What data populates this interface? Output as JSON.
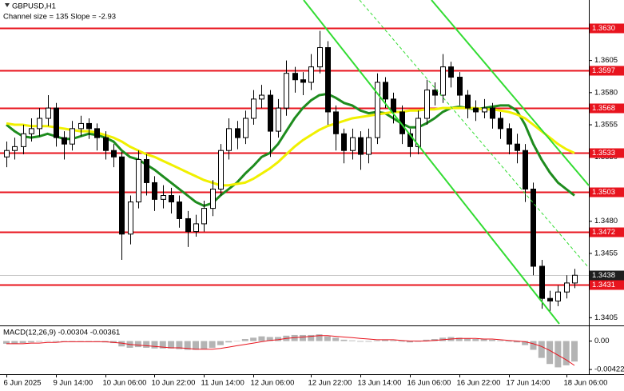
{
  "chart_data": {
    "type": "candlestick",
    "title": "GBPUSD,H1",
    "subtitle": "Channel size = 135 Slope = -2.93",
    "categories": [
      "6 Jun 2025",
      null,
      null,
      null,
      null,
      null,
      "9 Jun 14:00",
      null,
      null,
      null,
      null,
      null,
      "10 Jun 06:00",
      null,
      null,
      null,
      null,
      null,
      "10 Jun 22:00",
      null,
      null,
      null,
      null,
      null,
      "11 Jun 14:00",
      null,
      null,
      null,
      null,
      null,
      "12 Jun 06:00",
      null,
      null,
      null,
      null,
      null,
      null,
      "12 Jun 22:00",
      null,
      null,
      null,
      null,
      null,
      "13 Jun 14:00",
      null,
      null,
      null,
      null,
      null,
      "16 Jun 06:00",
      null,
      null,
      null,
      null,
      null,
      "16 Jun 22:00",
      null,
      null,
      null,
      null,
      null,
      "17 Jun 14:00",
      null,
      null,
      null,
      null,
      null,
      null,
      "18 Jun 06:00",
      null
    ],
    "open": [
      1.353,
      1.3535,
      1.3538,
      1.3548,
      1.3552,
      1.356,
      1.3568,
      1.3545,
      1.354,
      1.3552,
      1.3556,
      1.3552,
      1.3545,
      1.3535,
      1.353,
      1.347,
      1.3495,
      1.3528,
      1.351,
      1.3497,
      1.35,
      1.3495,
      1.3482,
      1.3472,
      1.3478,
      1.349,
      1.3505,
      1.3535,
      1.3552,
      1.3545,
      1.356,
      1.3575,
      1.3578,
      1.355,
      1.3568,
      1.3595,
      1.359,
      1.3588,
      1.36,
      1.3615,
      1.3565,
      1.3548,
      1.3535,
      1.3545,
      1.3532,
      1.3545,
      1.3588,
      1.3575,
      1.3565,
      1.3548,
      1.3538,
      1.356,
      1.3582,
      1.3578,
      1.36,
      1.3592,
      1.3578,
      1.3568,
      1.3565,
      1.3568,
      1.356,
      1.3552,
      1.354,
      1.3535,
      1.3505,
      1.3445,
      1.342,
      1.3418,
      1.3425,
      1.3432
    ],
    "high": [
      1.3542,
      1.3545,
      1.3555,
      1.356,
      1.3568,
      1.3578,
      1.3572,
      1.355,
      1.3558,
      1.3562,
      1.356,
      1.3556,
      1.355,
      1.354,
      1.3534,
      1.35,
      1.3535,
      1.3532,
      1.3515,
      1.3508,
      1.3506,
      1.35,
      1.3488,
      1.3485,
      1.3496,
      1.3512,
      1.354,
      1.356,
      1.3558,
      1.3566,
      1.3582,
      1.3586,
      1.3582,
      1.3575,
      1.3605,
      1.36,
      1.3596,
      1.361,
      1.3628,
      1.362,
      1.357,
      1.3552,
      1.3552,
      1.355,
      1.3552,
      1.3595,
      1.3592,
      1.358,
      1.357,
      1.3552,
      1.3566,
      1.359,
      1.3588,
      1.361,
      1.3604,
      1.3596,
      1.3582,
      1.3574,
      1.3575,
      1.3572,
      1.3565,
      1.3556,
      1.3548,
      1.354,
      1.351,
      1.345,
      1.3426,
      1.343,
      1.3438,
      1.3443
    ],
    "low": [
      1.3522,
      1.3528,
      1.3532,
      1.3542,
      1.3546,
      1.3554,
      1.3538,
      1.3528,
      1.3535,
      1.3546,
      1.3544,
      1.3535,
      1.3528,
      1.3522,
      1.345,
      1.3462,
      1.349,
      1.35,
      1.3488,
      1.349,
      1.3486,
      1.3475,
      1.346,
      1.3468,
      1.3472,
      1.3484,
      1.35,
      1.3528,
      1.3536,
      1.354,
      1.3555,
      1.3568,
      1.353,
      1.3545,
      1.3562,
      1.358,
      1.3578,
      1.3582,
      1.3595,
      1.3555,
      1.3535,
      1.3525,
      1.3528,
      1.352,
      1.3525,
      1.354,
      1.3568,
      1.3556,
      1.354,
      1.353,
      1.3532,
      1.3555,
      1.357,
      1.3572,
      1.3584,
      1.357,
      1.356,
      1.3558,
      1.356,
      1.3552,
      1.3544,
      1.3532,
      1.3525,
      1.3495,
      1.3438,
      1.3412,
      1.341,
      1.3414,
      1.342,
      1.3428
    ],
    "close": [
      1.3535,
      1.3538,
      1.3548,
      1.3552,
      1.356,
      1.3568,
      1.3545,
      1.354,
      1.3552,
      1.3556,
      1.3552,
      1.3545,
      1.3535,
      1.353,
      1.347,
      1.3495,
      1.3528,
      1.351,
      1.3497,
      1.35,
      1.3495,
      1.3482,
      1.3472,
      1.3478,
      1.349,
      1.3505,
      1.3535,
      1.3552,
      1.3545,
      1.356,
      1.3575,
      1.3578,
      1.355,
      1.3568,
      1.3595,
      1.359,
      1.3588,
      1.36,
      1.3615,
      1.3565,
      1.3548,
      1.3535,
      1.3545,
      1.3532,
      1.3545,
      1.3588,
      1.3575,
      1.3565,
      1.3548,
      1.3538,
      1.356,
      1.3582,
      1.3578,
      1.36,
      1.3592,
      1.3578,
      1.3568,
      1.3565,
      1.3568,
      1.356,
      1.3552,
      1.354,
      1.3535,
      1.3505,
      1.3445,
      1.342,
      1.3418,
      1.3425,
      1.3432,
      1.3438
    ],
    "ma_lines": [
      {
        "color": "#1e8c1e",
        "values": [
          1.3555,
          1.355,
          1.3546,
          1.3545,
          1.3546,
          1.3548,
          1.3546,
          1.3544,
          1.3544,
          1.3546,
          1.3548,
          1.3547,
          1.3545,
          1.3542,
          1.3535,
          1.353,
          1.3528,
          1.3524,
          1.352,
          1.3515,
          1.351,
          1.3505,
          1.35,
          1.3495,
          1.3492,
          1.3494,
          1.35,
          1.3505,
          1.351,
          1.3517,
          1.3523,
          1.353,
          1.3533,
          1.354,
          1.355,
          1.356,
          1.3568,
          1.3574,
          1.3578,
          1.3579,
          1.3576,
          1.3572,
          1.357,
          1.3566,
          1.3564,
          1.3565,
          1.3564,
          1.356,
          1.3556,
          1.3553,
          1.3553,
          1.3556,
          1.356,
          1.3565,
          1.3568,
          1.3569,
          1.3568,
          1.3567,
          1.3568,
          1.3569,
          1.357,
          1.357,
          1.3566,
          1.3555,
          1.354,
          1.3528,
          1.3518,
          1.351,
          1.3505,
          1.35
        ]
      },
      {
        "color": "#f0f000",
        "values": [
          1.3556,
          1.3555,
          1.3555,
          1.3554,
          1.3554,
          1.3554,
          1.3553,
          1.3552,
          1.3551,
          1.355,
          1.355,
          1.3549,
          1.3547,
          1.3545,
          1.3542,
          1.3538,
          1.3535,
          1.3532,
          1.353,
          1.3527,
          1.3524,
          1.3521,
          1.3518,
          1.3515,
          1.3512,
          1.351,
          1.3508,
          1.3508,
          1.3509,
          1.351,
          1.3513,
          1.3517,
          1.3521,
          1.3526,
          1.3532,
          1.3538,
          1.3543,
          1.3547,
          1.3551,
          1.3554,
          1.3556,
          1.3558,
          1.356,
          1.3561,
          1.3562,
          1.3563,
          1.3564,
          1.3565,
          1.3565,
          1.3566,
          1.3566,
          1.3567,
          1.3567,
          1.3568,
          1.3568,
          1.3568,
          1.3568,
          1.3568,
          1.3567,
          1.3567,
          1.3566,
          1.3565,
          1.3563,
          1.356,
          1.3555,
          1.355,
          1.3545,
          1.354,
          1.3536,
          1.3533
        ]
      }
    ],
    "ylim": [
      1.3399,
      1.3652
    ],
    "yticks": [
      1.3605,
      {
        "value": 1.358,
        "label": "1.3580"
      },
      1.3555,
      {
        "value": 1.353,
        "label": "1.3530"
      },
      {
        "value": 1.348,
        "label": "1.3480"
      },
      1.3455,
      1.3405
    ],
    "levels": [
      {
        "value": 1.363,
        "label": "1.3630"
      },
      1.3597,
      1.3568,
      1.3533,
      1.3503,
      1.3472,
      1.3431
    ],
    "level_color": "#e8141e",
    "current_price": 1.3438,
    "macd": {
      "label": "MACD(12,26,9) -0.00304 -0.00361",
      "color": "#b4b4b4",
      "signal_color": "#e8141e",
      "histogram": [
        -0.0004,
        -0.0004,
        -0.0003,
        -0.0002,
        -0.0001,
        0.0,
        -0.0001,
        -0.0001,
        -0.0001,
        -0.0001,
        0.0,
        -0.0001,
        -0.0002,
        -0.0003,
        -0.0008,
        -0.001,
        -0.0009,
        -0.001,
        -0.0011,
        -0.0011,
        -0.0011,
        -0.0012,
        -0.0013,
        -0.0013,
        -0.0012,
        -0.001,
        -0.0006,
        -0.0002,
        0.0,
        0.0003,
        0.0005,
        0.0007,
        0.0006,
        0.0006,
        0.0008,
        0.0009,
        0.0009,
        0.0009,
        0.001,
        0.0007,
        0.0005,
        0.0002,
        0.0001,
        -0.0001,
        -0.0001,
        0.0001,
        0.0002,
        0.0001,
        -0.0001,
        -0.0002,
        -0.0001,
        0.0002,
        0.0003,
        0.0005,
        0.0006,
        0.0005,
        0.0004,
        0.0003,
        0.0003,
        0.0002,
        0.0001,
        -0.0001,
        -0.0002,
        -0.0006,
        -0.0013,
        -0.0025,
        -0.0034,
        -0.0039,
        -0.0036,
        -0.00304
      ],
      "signal": [
        -0.0004,
        -0.0004,
        -0.0004,
        -0.0003,
        -0.0003,
        -0.0002,
        -0.0002,
        -0.0001,
        -0.0001,
        -0.0001,
        -0.0001,
        -0.0001,
        -0.0001,
        -0.0002,
        -0.0003,
        -0.0005,
        -0.0006,
        -0.0007,
        -0.0008,
        -0.0009,
        -0.001,
        -0.001,
        -0.0011,
        -0.0012,
        -0.0012,
        -0.0012,
        -0.0011,
        -0.0009,
        -0.0007,
        -0.0005,
        -0.0003,
        -0.0001,
        0.0001,
        0.0002,
        0.0004,
        0.0005,
        0.0006,
        0.0007,
        0.0008,
        0.0008,
        0.0007,
        0.0006,
        0.0005,
        0.0004,
        0.0003,
        0.0002,
        0.0002,
        0.0002,
        0.0001,
        0.0,
        0.0,
        0.0,
        0.0001,
        0.0002,
        0.0003,
        0.0004,
        0.0004,
        0.0004,
        0.0003,
        0.0003,
        0.0002,
        0.0001,
        0.0,
        -0.0001,
        -0.0004,
        -0.0008,
        -0.0014,
        -0.0021,
        -0.0028,
        -0.00361
      ],
      "ylim": [
        -0.0048,
        0.0022
      ],
      "yticks": [
        {
          "value": 0,
          "label": "0.00"
        },
        -0.00422
      ]
    }
  }
}
